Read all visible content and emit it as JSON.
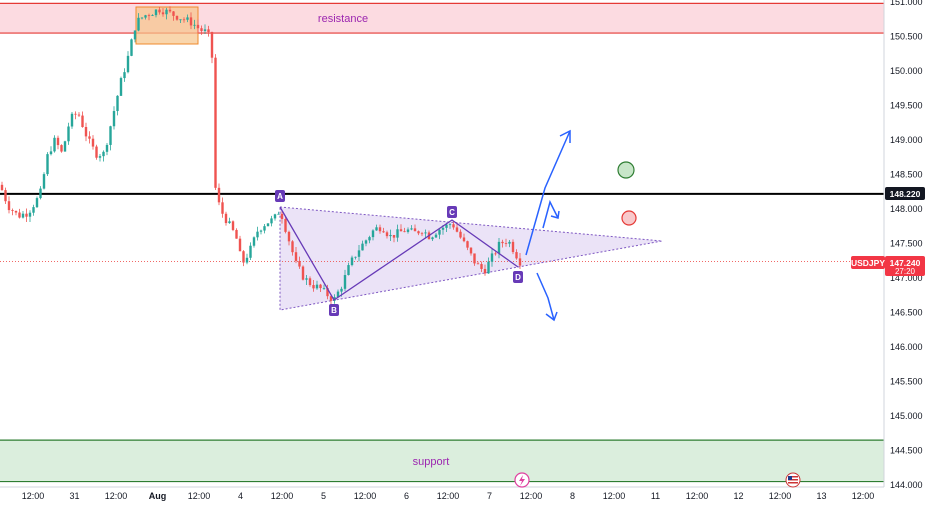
{
  "chart_data": {
    "type": "candlestick",
    "symbol": "USDJPY",
    "last_price": "147.240",
    "countdown": "27:20",
    "ylim": [
      144.0,
      151.0
    ],
    "y_ticks": [
      "151.000",
      "150.500",
      "150.000",
      "149.500",
      "149.000",
      "148.500",
      "148.000",
      "147.500",
      "147.000",
      "146.500",
      "146.000",
      "145.500",
      "145.000",
      "144.500",
      "144.000"
    ],
    "x_ticks": [
      "12:00",
      "31",
      "12:00",
      "Aug",
      "12:00",
      "4",
      "12:00",
      "5",
      "12:00",
      "6",
      "12:00",
      "7",
      "12:00",
      "8",
      "12:00",
      "11",
      "12:00",
      "12",
      "12:00",
      "13",
      "12:00"
    ],
    "resistance": {
      "label": "resistance",
      "from": 150.55,
      "to": 150.98
    },
    "support": {
      "label": "support",
      "from": 144.05,
      "to": 144.65
    },
    "horizontal_level": {
      "value": 148.22,
      "label": "148.220"
    },
    "points": [
      {
        "label": "A",
        "value": 148.05
      },
      {
        "label": "B",
        "value": 146.65
      },
      {
        "label": "C",
        "value": 147.8
      },
      {
        "label": "D",
        "value": 147.15
      }
    ],
    "colors": {
      "up": "#26a69a",
      "down": "#ef5350",
      "resistance_fill": "#fcd7de",
      "resistance_line": "#e53935",
      "support_fill": "#d7ecd9",
      "support_line": "#2e7d32",
      "triangle_fill": "#e6dcf5",
      "pattern": "#673ab7",
      "arrow": "#2962ff",
      "badge": "#f23645"
    }
  }
}
